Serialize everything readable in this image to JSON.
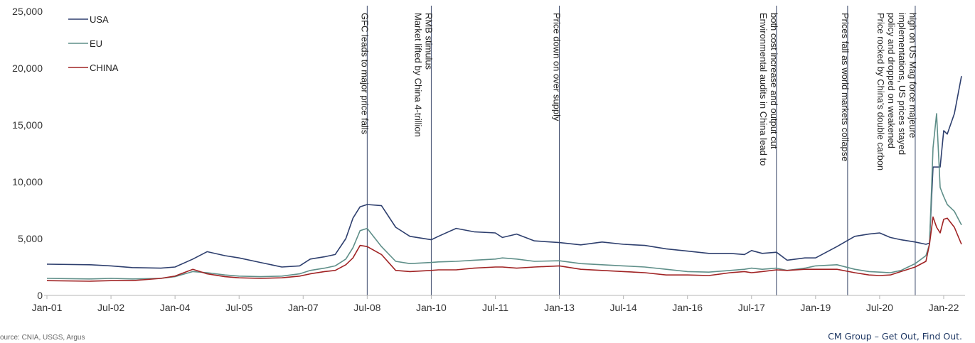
{
  "footer": {
    "source": "ource: CNIA, USGS, Argus",
    "brand": "CM Group – Get Out, Find Out."
  },
  "chart_data": {
    "type": "line",
    "title": "",
    "xlabel": "",
    "ylabel": "",
    "ylim": [
      0,
      25000
    ],
    "xlim": [
      "2001-01",
      "2022-07"
    ],
    "grid": false,
    "legend_position": "top-left",
    "y_ticks": [
      "0",
      "5,000",
      "10,000",
      "15,000",
      "20,000",
      "25,000"
    ],
    "x_ticks": [
      "Jan-01",
      "Jul-02",
      "Jan-04",
      "Jul-05",
      "Jan-07",
      "Jul-08",
      "Jan-10",
      "Jul-11",
      "Jan-13",
      "Jul-14",
      "Jan-16",
      "Jul-17",
      "Jan-19",
      "Jul-20",
      "Jan-22"
    ],
    "annotations": [
      {
        "date": "2008-07",
        "text": [
          "GFC leads to major price falls"
        ]
      },
      {
        "date": "2010-01",
        "text": [
          "Market lifted by China 4-trillion",
          "RMB stimulus"
        ]
      },
      {
        "date": "2013-01",
        "text": [
          "Price down on over supply"
        ]
      },
      {
        "date": "2018-02",
        "text": [
          "Environmental audits in China lead to",
          "both cost increase and output cut"
        ]
      },
      {
        "date": "2019-10",
        "text": [
          "Prices fall as world markets collapse"
        ]
      },
      {
        "date": "2021-05",
        "text": [
          "Price rocked by China's double carbon",
          "policy and dropped on weakened",
          "implementations, US prices stayed",
          "high on US Mag force majeure"
        ]
      }
    ],
    "series": [
      {
        "name": "USA",
        "color": "#2e3f6e",
        "points": [
          [
            "2001-01",
            2750
          ],
          [
            "2002-01",
            2700
          ],
          [
            "2002-07",
            2600
          ],
          [
            "2003-01",
            2450
          ],
          [
            "2003-09",
            2400
          ],
          [
            "2004-01",
            2500
          ],
          [
            "2004-06",
            3200
          ],
          [
            "2004-10",
            3850
          ],
          [
            "2005-03",
            3500
          ],
          [
            "2005-07",
            3300
          ],
          [
            "2006-01",
            2900
          ],
          [
            "2006-07",
            2500
          ],
          [
            "2006-12",
            2600
          ],
          [
            "2007-03",
            3200
          ],
          [
            "2007-07",
            3400
          ],
          [
            "2007-10",
            3600
          ],
          [
            "2008-01",
            5000
          ],
          [
            "2008-03",
            6800
          ],
          [
            "2008-05",
            7800
          ],
          [
            "2008-07",
            8000
          ],
          [
            "2008-11",
            7900
          ],
          [
            "2009-03",
            6000
          ],
          [
            "2009-07",
            5200
          ],
          [
            "2010-01",
            4900
          ],
          [
            "2010-03",
            5200
          ],
          [
            "2010-08",
            5900
          ],
          [
            "2011-01",
            5600
          ],
          [
            "2011-07",
            5500
          ],
          [
            "2011-09",
            5100
          ],
          [
            "2012-01",
            5400
          ],
          [
            "2012-06",
            4800
          ],
          [
            "2013-01",
            4650
          ],
          [
            "2013-07",
            4450
          ],
          [
            "2014-01",
            4700
          ],
          [
            "2014-07",
            4500
          ],
          [
            "2015-01",
            4400
          ],
          [
            "2015-07",
            4100
          ],
          [
            "2016-01",
            3900
          ],
          [
            "2016-07",
            3700
          ],
          [
            "2017-01",
            3700
          ],
          [
            "2017-05",
            3600
          ],
          [
            "2017-07",
            3950
          ],
          [
            "2017-10",
            3700
          ],
          [
            "2018-02",
            3800
          ],
          [
            "2018-05",
            3100
          ],
          [
            "2018-10",
            3300
          ],
          [
            "2019-01",
            3300
          ],
          [
            "2019-07",
            4300
          ],
          [
            "2019-12",
            5200
          ],
          [
            "2020-04",
            5400
          ],
          [
            "2020-07",
            5500
          ],
          [
            "2020-10",
            5100
          ],
          [
            "2021-01",
            4900
          ],
          [
            "2021-05",
            4700
          ],
          [
            "2021-08",
            4500
          ],
          [
            "2021-09",
            4600
          ],
          [
            "2021-10",
            11300
          ],
          [
            "2021-12",
            11300
          ],
          [
            "2022-01",
            14500
          ],
          [
            "2022-02",
            14200
          ],
          [
            "2022-04",
            16000
          ],
          [
            "2022-06",
            19300
          ]
        ]
      },
      {
        "name": "EU",
        "color": "#5f8f89",
        "points": [
          [
            "2001-01",
            1500
          ],
          [
            "2002-01",
            1450
          ],
          [
            "2002-07",
            1500
          ],
          [
            "2003-01",
            1450
          ],
          [
            "2003-09",
            1500
          ],
          [
            "2004-01",
            1650
          ],
          [
            "2004-06",
            2100
          ],
          [
            "2004-10",
            2000
          ],
          [
            "2005-03",
            1800
          ],
          [
            "2005-07",
            1700
          ],
          [
            "2006-01",
            1650
          ],
          [
            "2006-07",
            1700
          ],
          [
            "2006-12",
            1900
          ],
          [
            "2007-03",
            2200
          ],
          [
            "2007-07",
            2400
          ],
          [
            "2007-10",
            2600
          ],
          [
            "2008-01",
            3200
          ],
          [
            "2008-03",
            4200
          ],
          [
            "2008-05",
            5700
          ],
          [
            "2008-07",
            5900
          ],
          [
            "2008-11",
            4300
          ],
          [
            "2009-03",
            3000
          ],
          [
            "2009-07",
            2800
          ],
          [
            "2010-01",
            2900
          ],
          [
            "2010-03",
            2950
          ],
          [
            "2010-08",
            3000
          ],
          [
            "2011-01",
            3100
          ],
          [
            "2011-07",
            3200
          ],
          [
            "2011-09",
            3300
          ],
          [
            "2012-01",
            3200
          ],
          [
            "2012-06",
            3000
          ],
          [
            "2013-01",
            3050
          ],
          [
            "2013-07",
            2800
          ],
          [
            "2014-01",
            2700
          ],
          [
            "2014-07",
            2600
          ],
          [
            "2015-01",
            2500
          ],
          [
            "2015-07",
            2300
          ],
          [
            "2016-01",
            2100
          ],
          [
            "2016-07",
            2050
          ],
          [
            "2017-01",
            2200
          ],
          [
            "2017-05",
            2300
          ],
          [
            "2017-07",
            2400
          ],
          [
            "2017-10",
            2300
          ],
          [
            "2018-02",
            2400
          ],
          [
            "2018-05",
            2200
          ],
          [
            "2018-10",
            2400
          ],
          [
            "2019-01",
            2600
          ],
          [
            "2019-07",
            2700
          ],
          [
            "2019-12",
            2300
          ],
          [
            "2020-04",
            2100
          ],
          [
            "2020-07",
            2050
          ],
          [
            "2020-10",
            2000
          ],
          [
            "2021-01",
            2200
          ],
          [
            "2021-05",
            2800
          ],
          [
            "2021-08",
            3500
          ],
          [
            "2021-09",
            4500
          ],
          [
            "2021-10",
            13000
          ],
          [
            "2021-11",
            16000
          ],
          [
            "2021-12",
            9500
          ],
          [
            "2022-01",
            8700
          ],
          [
            "2022-02",
            8000
          ],
          [
            "2022-04",
            7400
          ],
          [
            "2022-06",
            6200
          ]
        ]
      },
      {
        "name": "CHINA",
        "color": "#a02324",
        "points": [
          [
            "2001-01",
            1300
          ],
          [
            "2002-01",
            1250
          ],
          [
            "2002-07",
            1300
          ],
          [
            "2003-01",
            1300
          ],
          [
            "2003-09",
            1500
          ],
          [
            "2004-01",
            1700
          ],
          [
            "2004-06",
            2300
          ],
          [
            "2004-10",
            1900
          ],
          [
            "2005-03",
            1650
          ],
          [
            "2005-07",
            1550
          ],
          [
            "2006-01",
            1500
          ],
          [
            "2006-07",
            1550
          ],
          [
            "2006-12",
            1700
          ],
          [
            "2007-03",
            1900
          ],
          [
            "2007-07",
            2100
          ],
          [
            "2007-10",
            2200
          ],
          [
            "2008-01",
            2700
          ],
          [
            "2008-03",
            3300
          ],
          [
            "2008-05",
            4400
          ],
          [
            "2008-07",
            4300
          ],
          [
            "2008-11",
            3600
          ],
          [
            "2009-03",
            2200
          ],
          [
            "2009-07",
            2100
          ],
          [
            "2010-01",
            2200
          ],
          [
            "2010-03",
            2250
          ],
          [
            "2010-08",
            2250
          ],
          [
            "2011-01",
            2400
          ],
          [
            "2011-07",
            2500
          ],
          [
            "2011-09",
            2500
          ],
          [
            "2012-01",
            2400
          ],
          [
            "2012-06",
            2500
          ],
          [
            "2013-01",
            2600
          ],
          [
            "2013-07",
            2300
          ],
          [
            "2014-01",
            2200
          ],
          [
            "2014-07",
            2100
          ],
          [
            "2015-01",
            2000
          ],
          [
            "2015-07",
            1800
          ],
          [
            "2016-01",
            1800
          ],
          [
            "2016-07",
            1750
          ],
          [
            "2017-01",
            2000
          ],
          [
            "2017-05",
            2100
          ],
          [
            "2017-07",
            2000
          ],
          [
            "2017-10",
            2100
          ],
          [
            "2018-02",
            2250
          ],
          [
            "2018-05",
            2200
          ],
          [
            "2018-10",
            2300
          ],
          [
            "2019-01",
            2300
          ],
          [
            "2019-07",
            2300
          ],
          [
            "2019-12",
            2000
          ],
          [
            "2020-04",
            1800
          ],
          [
            "2020-07",
            1750
          ],
          [
            "2020-10",
            1800
          ],
          [
            "2021-01",
            2100
          ],
          [
            "2021-05",
            2500
          ],
          [
            "2021-08",
            3000
          ],
          [
            "2021-09",
            4500
          ],
          [
            "2021-10",
            6900
          ],
          [
            "2021-11",
            6000
          ],
          [
            "2021-12",
            5500
          ],
          [
            "2022-01",
            6700
          ],
          [
            "2022-02",
            6800
          ],
          [
            "2022-04",
            6000
          ],
          [
            "2022-06",
            4500
          ]
        ]
      }
    ]
  }
}
